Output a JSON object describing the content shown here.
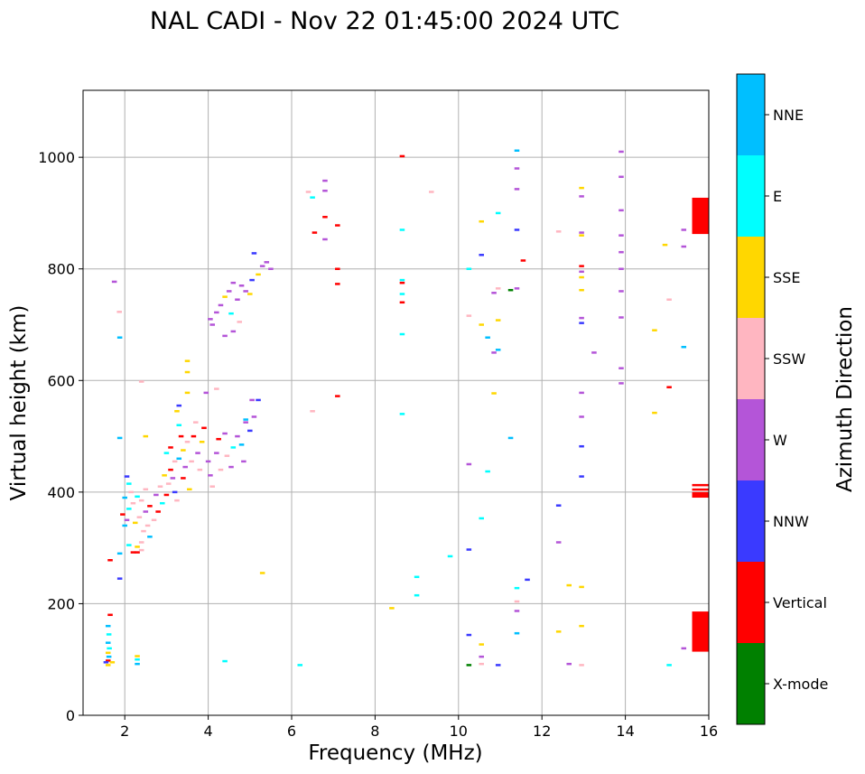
{
  "chart_data": {
    "type": "scatter",
    "title": "NAL CADI - Nov 22 01:45:00 2024 UTC",
    "xlabel": "Frequency (MHz)",
    "ylabel": "Virtual height (km)",
    "xlim": [
      1,
      16
    ],
    "ylim": [
      0,
      1120
    ],
    "xticks": [
      2,
      4,
      6,
      8,
      10,
      12,
      14,
      16
    ],
    "yticks": [
      0,
      200,
      400,
      600,
      800,
      1000
    ],
    "grid": true,
    "colorbar": {
      "label": "Azimuth Direction",
      "categories": [
        {
          "name": "X-mode",
          "color": "#008000"
        },
        {
          "name": "Vertical",
          "color": "#ff0000"
        },
        {
          "name": "NNW",
          "color": "#3a3aff"
        },
        {
          "name": "W",
          "color": "#b455d8"
        },
        {
          "name": "SSW",
          "color": "#ffb6c1"
        },
        {
          "name": "SSE",
          "color": "#ffd700"
        },
        {
          "name": "E",
          "color": "#00ffff"
        },
        {
          "name": "NNE",
          "color": "#00bfff"
        }
      ]
    },
    "points": [
      {
        "f": 1.6,
        "h": 90,
        "c": "SSE"
      },
      {
        "f": 1.6,
        "h": 98,
        "c": "Vertical"
      },
      {
        "f": 1.62,
        "h": 105,
        "c": "NNE"
      },
      {
        "f": 1.6,
        "h": 112,
        "c": "SSE"
      },
      {
        "f": 1.63,
        "h": 120,
        "c": "E"
      },
      {
        "f": 1.6,
        "h": 130,
        "c": "NNE"
      },
      {
        "f": 1.62,
        "h": 145,
        "c": "E"
      },
      {
        "f": 1.6,
        "h": 160,
        "c": "NNE"
      },
      {
        "f": 1.65,
        "h": 180,
        "c": "Vertical"
      },
      {
        "f": 1.55,
        "h": 95,
        "c": "NNW"
      },
      {
        "f": 1.7,
        "h": 95,
        "c": "SSE"
      },
      {
        "f": 1.65,
        "h": 278,
        "c": "Vertical"
      },
      {
        "f": 1.75,
        "h": 777,
        "c": "W"
      },
      {
        "f": 1.87,
        "h": 723,
        "c": "SSW"
      },
      {
        "f": 1.88,
        "h": 677,
        "c": "NNE"
      },
      {
        "f": 1.88,
        "h": 497,
        "c": "NNE"
      },
      {
        "f": 1.88,
        "h": 245,
        "c": "NNW"
      },
      {
        "f": 1.88,
        "h": 290,
        "c": "NNE"
      },
      {
        "f": 2.3,
        "h": 92,
        "c": "NNE"
      },
      {
        "f": 2.3,
        "h": 100,
        "c": "E"
      },
      {
        "f": 2.3,
        "h": 106,
        "c": "SSE"
      },
      {
        "f": 2.2,
        "h": 292,
        "c": "Vertical"
      },
      {
        "f": 2.3,
        "h": 292,
        "c": "Vertical"
      },
      {
        "f": 2.4,
        "h": 296,
        "c": "SSW"
      },
      {
        "f": 2.1,
        "h": 305,
        "c": "E"
      },
      {
        "f": 2.3,
        "h": 302,
        "c": "SSE"
      },
      {
        "f": 2.4,
        "h": 310,
        "c": "SSW"
      },
      {
        "f": 2.0,
        "h": 340,
        "c": "NNE"
      },
      {
        "f": 2.05,
        "h": 350,
        "c": "W"
      },
      {
        "f": 1.95,
        "h": 360,
        "c": "Vertical"
      },
      {
        "f": 2.1,
        "h": 370,
        "c": "E"
      },
      {
        "f": 2.2,
        "h": 380,
        "c": "SSW"
      },
      {
        "f": 2.0,
        "h": 390,
        "c": "NNE"
      },
      {
        "f": 2.15,
        "h": 400,
        "c": "SSW"
      },
      {
        "f": 2.05,
        "h": 428,
        "c": "NNW"
      },
      {
        "f": 2.1,
        "h": 415,
        "c": "E"
      },
      {
        "f": 2.25,
        "h": 345,
        "c": "SSE"
      },
      {
        "f": 2.35,
        "h": 355,
        "c": "SSW"
      },
      {
        "f": 2.45,
        "h": 330,
        "c": "SSW"
      },
      {
        "f": 2.5,
        "h": 365,
        "c": "W"
      },
      {
        "f": 2.55,
        "h": 340,
        "c": "SSW"
      },
      {
        "f": 2.6,
        "h": 320,
        "c": "NNE"
      },
      {
        "f": 2.3,
        "h": 392,
        "c": "E"
      },
      {
        "f": 2.4,
        "h": 385,
        "c": "SSW"
      },
      {
        "f": 2.5,
        "h": 405,
        "c": "SSW"
      },
      {
        "f": 2.6,
        "h": 375,
        "c": "Vertical"
      },
      {
        "f": 2.7,
        "h": 350,
        "c": "SSW"
      },
      {
        "f": 2.75,
        "h": 395,
        "c": "W"
      },
      {
        "f": 2.8,
        "h": 365,
        "c": "Vertical"
      },
      {
        "f": 2.85,
        "h": 410,
        "c": "SSW"
      },
      {
        "f": 2.9,
        "h": 380,
        "c": "E"
      },
      {
        "f": 2.95,
        "h": 430,
        "c": "SSE"
      },
      {
        "f": 3.0,
        "h": 395,
        "c": "Vertical"
      },
      {
        "f": 3.05,
        "h": 415,
        "c": "SSW"
      },
      {
        "f": 3.1,
        "h": 440,
        "c": "Vertical"
      },
      {
        "f": 3.15,
        "h": 425,
        "c": "W"
      },
      {
        "f": 3.2,
        "h": 455,
        "c": "SSW"
      },
      {
        "f": 3.0,
        "h": 470,
        "c": "E"
      },
      {
        "f": 3.1,
        "h": 480,
        "c": "Vertical"
      },
      {
        "f": 3.2,
        "h": 400,
        "c": "NNW"
      },
      {
        "f": 3.25,
        "h": 385,
        "c": "SSW"
      },
      {
        "f": 3.3,
        "h": 460,
        "c": "NNE"
      },
      {
        "f": 3.35,
        "h": 500,
        "c": "Vertical"
      },
      {
        "f": 3.4,
        "h": 475,
        "c": "SSE"
      },
      {
        "f": 3.45,
        "h": 445,
        "c": "W"
      },
      {
        "f": 3.5,
        "h": 490,
        "c": "SSW"
      },
      {
        "f": 3.3,
        "h": 520,
        "c": "E"
      },
      {
        "f": 3.25,
        "h": 545,
        "c": "SSE"
      },
      {
        "f": 3.3,
        "h": 555,
        "c": "NNW"
      },
      {
        "f": 3.4,
        "h": 425,
        "c": "Vertical"
      },
      {
        "f": 3.55,
        "h": 405,
        "c": "SSE"
      },
      {
        "f": 3.6,
        "h": 455,
        "c": "SSW"
      },
      {
        "f": 3.65,
        "h": 500,
        "c": "Vertical"
      },
      {
        "f": 3.7,
        "h": 525,
        "c": "SSW"
      },
      {
        "f": 3.75,
        "h": 470,
        "c": "W"
      },
      {
        "f": 3.8,
        "h": 440,
        "c": "SSW"
      },
      {
        "f": 3.85,
        "h": 490,
        "c": "SSE"
      },
      {
        "f": 3.9,
        "h": 515,
        "c": "Vertical"
      },
      {
        "f": 4.0,
        "h": 455,
        "c": "W"
      },
      {
        "f": 4.05,
        "h": 430,
        "c": "W"
      },
      {
        "f": 4.1,
        "h": 410,
        "c": "SSW"
      },
      {
        "f": 4.2,
        "h": 470,
        "c": "W"
      },
      {
        "f": 4.25,
        "h": 495,
        "c": "Vertical"
      },
      {
        "f": 4.3,
        "h": 440,
        "c": "SSW"
      },
      {
        "f": 4.4,
        "h": 505,
        "c": "W"
      },
      {
        "f": 4.45,
        "h": 465,
        "c": "SSW"
      },
      {
        "f": 4.55,
        "h": 445,
        "c": "W"
      },
      {
        "f": 4.6,
        "h": 480,
        "c": "E"
      },
      {
        "f": 4.7,
        "h": 500,
        "c": "W"
      },
      {
        "f": 4.8,
        "h": 485,
        "c": "NNE"
      },
      {
        "f": 4.9,
        "h": 525,
        "c": "W"
      },
      {
        "f": 5.0,
        "h": 510,
        "c": "NNW"
      },
      {
        "f": 4.85,
        "h": 455,
        "c": "W"
      },
      {
        "f": 5.1,
        "h": 535,
        "c": "W"
      },
      {
        "f": 5.05,
        "h": 565,
        "c": "W"
      },
      {
        "f": 5.2,
        "h": 565,
        "c": "NNW"
      },
      {
        "f": 4.9,
        "h": 530,
        "c": "NNE"
      },
      {
        "f": 5.3,
        "h": 255,
        "c": "SSE"
      },
      {
        "f": 4.2,
        "h": 585,
        "c": "SSW"
      },
      {
        "f": 3.95,
        "h": 578,
        "c": "W"
      },
      {
        "f": 3.5,
        "h": 578,
        "c": "SSE"
      },
      {
        "f": 3.5,
        "h": 615,
        "c": "SSE"
      },
      {
        "f": 3.5,
        "h": 635,
        "c": "SSE"
      },
      {
        "f": 2.5,
        "h": 500,
        "c": "SSE"
      },
      {
        "f": 2.4,
        "h": 598,
        "c": "SSW"
      },
      {
        "f": 4.4,
        "h": 97,
        "c": "E"
      },
      {
        "f": 4.1,
        "h": 700,
        "c": "W"
      },
      {
        "f": 4.2,
        "h": 722,
        "c": "W"
      },
      {
        "f": 4.05,
        "h": 710,
        "c": "W"
      },
      {
        "f": 4.3,
        "h": 735,
        "c": "W"
      },
      {
        "f": 4.4,
        "h": 750,
        "c": "SSE"
      },
      {
        "f": 4.5,
        "h": 760,
        "c": "W"
      },
      {
        "f": 4.6,
        "h": 775,
        "c": "W"
      },
      {
        "f": 4.7,
        "h": 745,
        "c": "W"
      },
      {
        "f": 4.75,
        "h": 705,
        "c": "SSW"
      },
      {
        "f": 4.8,
        "h": 770,
        "c": "W"
      },
      {
        "f": 4.9,
        "h": 760,
        "c": "W"
      },
      {
        "f": 5.0,
        "h": 755,
        "c": "SSE"
      },
      {
        "f": 5.05,
        "h": 780,
        "c": "NNW"
      },
      {
        "f": 5.2,
        "h": 790,
        "c": "SSE"
      },
      {
        "f": 5.3,
        "h": 805,
        "c": "W"
      },
      {
        "f": 5.4,
        "h": 812,
        "c": "W"
      },
      {
        "f": 5.5,
        "h": 800,
        "c": "W"
      },
      {
        "f": 5.1,
        "h": 828,
        "c": "NNW"
      },
      {
        "f": 4.6,
        "h": 688,
        "c": "W"
      },
      {
        "f": 4.4,
        "h": 680,
        "c": "W"
      },
      {
        "f": 4.55,
        "h": 720,
        "c": "E"
      },
      {
        "f": 6.2,
        "h": 90,
        "c": "E"
      },
      {
        "f": 6.5,
        "h": 928,
        "c": "E"
      },
      {
        "f": 6.4,
        "h": 938,
        "c": "SSW"
      },
      {
        "f": 6.55,
        "h": 865,
        "c": "Vertical"
      },
      {
        "f": 6.8,
        "h": 940,
        "c": "W"
      },
      {
        "f": 6.8,
        "h": 958,
        "c": "W"
      },
      {
        "f": 6.8,
        "h": 893,
        "c": "Vertical"
      },
      {
        "f": 6.8,
        "h": 853,
        "c": "W"
      },
      {
        "f": 7.1,
        "h": 878,
        "c": "Vertical"
      },
      {
        "f": 7.1,
        "h": 800,
        "c": "Vertical"
      },
      {
        "f": 7.1,
        "h": 773,
        "c": "Vertical"
      },
      {
        "f": 7.1,
        "h": 572,
        "c": "Vertical"
      },
      {
        "f": 6.5,
        "h": 545,
        "c": "SSW"
      },
      {
        "f": 8.4,
        "h": 192,
        "c": "SSE"
      },
      {
        "f": 8.65,
        "h": 1002,
        "c": "Vertical"
      },
      {
        "f": 8.65,
        "h": 870,
        "c": "E"
      },
      {
        "f": 8.65,
        "h": 780,
        "c": "E"
      },
      {
        "f": 8.65,
        "h": 775,
        "c": "Vertical"
      },
      {
        "f": 8.65,
        "h": 755,
        "c": "E"
      },
      {
        "f": 8.65,
        "h": 740,
        "c": "Vertical"
      },
      {
        "f": 8.65,
        "h": 683,
        "c": "E"
      },
      {
        "f": 8.65,
        "h": 540,
        "c": "E"
      },
      {
        "f": 9.0,
        "h": 248,
        "c": "E"
      },
      {
        "f": 9.0,
        "h": 215,
        "c": "E"
      },
      {
        "f": 9.35,
        "h": 938,
        "c": "SSW"
      },
      {
        "f": 9.8,
        "h": 285,
        "c": "E"
      },
      {
        "f": 10.25,
        "h": 800,
        "c": "E"
      },
      {
        "f": 10.25,
        "h": 716,
        "c": "SSW"
      },
      {
        "f": 10.25,
        "h": 450,
        "c": "W"
      },
      {
        "f": 10.25,
        "h": 297,
        "c": "NNW"
      },
      {
        "f": 10.25,
        "h": 144,
        "c": "NNW"
      },
      {
        "f": 10.25,
        "h": 90,
        "c": "X-mode"
      },
      {
        "f": 10.55,
        "h": 885,
        "c": "SSE"
      },
      {
        "f": 10.55,
        "h": 825,
        "c": "NNW"
      },
      {
        "f": 10.55,
        "h": 700,
        "c": "SSE"
      },
      {
        "f": 10.55,
        "h": 353,
        "c": "E"
      },
      {
        "f": 10.55,
        "h": 127,
        "c": "SSE"
      },
      {
        "f": 10.55,
        "h": 105,
        "c": "W"
      },
      {
        "f": 10.55,
        "h": 92,
        "c": "SSW"
      },
      {
        "f": 10.7,
        "h": 677,
        "c": "NNE"
      },
      {
        "f": 10.7,
        "h": 437,
        "c": "E"
      },
      {
        "f": 10.85,
        "h": 757,
        "c": "W"
      },
      {
        "f": 10.85,
        "h": 650,
        "c": "W"
      },
      {
        "f": 10.85,
        "h": 577,
        "c": "SSE"
      },
      {
        "f": 10.95,
        "h": 900,
        "c": "E"
      },
      {
        "f": 10.95,
        "h": 765,
        "c": "SSW"
      },
      {
        "f": 10.95,
        "h": 708,
        "c": "SSE"
      },
      {
        "f": 10.95,
        "h": 655,
        "c": "NNE"
      },
      {
        "f": 10.95,
        "h": 90,
        "c": "NNW"
      },
      {
        "f": 11.25,
        "h": 497,
        "c": "NNE"
      },
      {
        "f": 11.25,
        "h": 762,
        "c": "X-mode"
      },
      {
        "f": 11.4,
        "h": 1012,
        "c": "NNE"
      },
      {
        "f": 11.4,
        "h": 980,
        "c": "W"
      },
      {
        "f": 11.4,
        "h": 943,
        "c": "W"
      },
      {
        "f": 11.4,
        "h": 870,
        "c": "NNW"
      },
      {
        "f": 11.4,
        "h": 765,
        "c": "W"
      },
      {
        "f": 11.4,
        "h": 228,
        "c": "E"
      },
      {
        "f": 11.4,
        "h": 204,
        "c": "SSW"
      },
      {
        "f": 11.4,
        "h": 187,
        "c": "W"
      },
      {
        "f": 11.4,
        "h": 147,
        "c": "NNE"
      },
      {
        "f": 11.55,
        "h": 815,
        "c": "Vertical"
      },
      {
        "f": 11.65,
        "h": 243,
        "c": "NNW"
      },
      {
        "f": 12.4,
        "h": 867,
        "c": "SSW"
      },
      {
        "f": 12.4,
        "h": 376,
        "c": "NNW"
      },
      {
        "f": 12.4,
        "h": 310,
        "c": "W"
      },
      {
        "f": 12.4,
        "h": 150,
        "c": "SSE"
      },
      {
        "f": 12.65,
        "h": 92,
        "c": "W"
      },
      {
        "f": 12.65,
        "h": 233,
        "c": "SSE"
      },
      {
        "f": 12.95,
        "h": 945,
        "c": "SSE"
      },
      {
        "f": 12.95,
        "h": 930,
        "c": "W"
      },
      {
        "f": 12.95,
        "h": 865,
        "c": "W"
      },
      {
        "f": 12.95,
        "h": 860,
        "c": "SSE"
      },
      {
        "f": 12.95,
        "h": 805,
        "c": "Vertical"
      },
      {
        "f": 12.95,
        "h": 795,
        "c": "W"
      },
      {
        "f": 12.95,
        "h": 785,
        "c": "SSE"
      },
      {
        "f": 12.95,
        "h": 762,
        "c": "SSE"
      },
      {
        "f": 12.95,
        "h": 712,
        "c": "W"
      },
      {
        "f": 12.95,
        "h": 703,
        "c": "NNW"
      },
      {
        "f": 12.95,
        "h": 578,
        "c": "W"
      },
      {
        "f": 12.95,
        "h": 535,
        "c": "W"
      },
      {
        "f": 12.95,
        "h": 482,
        "c": "NNW"
      },
      {
        "f": 12.95,
        "h": 428,
        "c": "NNW"
      },
      {
        "f": 12.95,
        "h": 230,
        "c": "SSE"
      },
      {
        "f": 12.95,
        "h": 160,
        "c": "SSE"
      },
      {
        "f": 12.95,
        "h": 90,
        "c": "SSW"
      },
      {
        "f": 13.25,
        "h": 650,
        "c": "W"
      },
      {
        "f": 13.9,
        "h": 1010,
        "c": "W"
      },
      {
        "f": 13.9,
        "h": 965,
        "c": "W"
      },
      {
        "f": 13.9,
        "h": 905,
        "c": "W"
      },
      {
        "f": 13.9,
        "h": 860,
        "c": "W"
      },
      {
        "f": 13.9,
        "h": 830,
        "c": "W"
      },
      {
        "f": 13.9,
        "h": 800,
        "c": "W"
      },
      {
        "f": 13.9,
        "h": 760,
        "c": "W"
      },
      {
        "f": 13.9,
        "h": 713,
        "c": "W"
      },
      {
        "f": 13.9,
        "h": 622,
        "c": "W"
      },
      {
        "f": 13.9,
        "h": 595,
        "c": "W"
      },
      {
        "f": 14.7,
        "h": 690,
        "c": "SSE"
      },
      {
        "f": 14.7,
        "h": 542,
        "c": "SSE"
      },
      {
        "f": 14.95,
        "h": 843,
        "c": "SSE"
      },
      {
        "f": 15.05,
        "h": 745,
        "c": "SSW"
      },
      {
        "f": 15.05,
        "h": 588,
        "c": "Vertical"
      },
      {
        "f": 15.05,
        "h": 90,
        "c": "E"
      },
      {
        "f": 15.4,
        "h": 870,
        "c": "W"
      },
      {
        "f": 15.4,
        "h": 840,
        "c": "W"
      },
      {
        "f": 15.4,
        "h": 660,
        "c": "NNE"
      },
      {
        "f": 15.4,
        "h": 120,
        "c": "W"
      },
      {
        "f": 15.8,
        "h": 895,
        "c": "Vertical",
        "w": 0.4,
        "dh": 65
      },
      {
        "f": 15.8,
        "h": 150,
        "c": "Vertical",
        "w": 0.4,
        "dh": 72
      },
      {
        "f": 15.8,
        "h": 395,
        "c": "Vertical",
        "w": 0.4,
        "dh": 10
      },
      {
        "f": 15.8,
        "h": 405,
        "c": "Vertical",
        "w": 0.4,
        "dh": 3
      },
      {
        "f": 15.8,
        "h": 413,
        "c": "Vertical",
        "w": 0.4,
        "dh": 3
      }
    ]
  }
}
